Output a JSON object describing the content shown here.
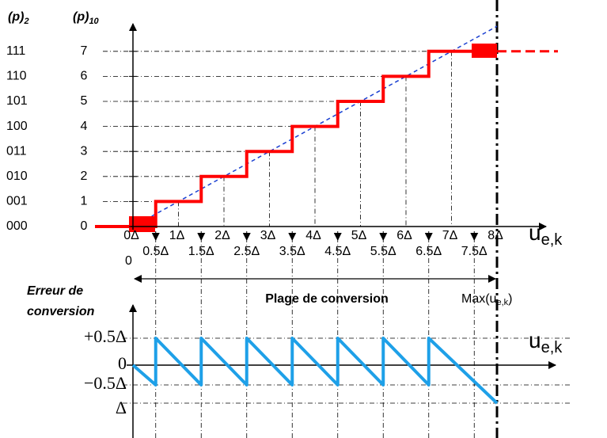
{
  "binary_axis_title": {
    "base": "(p)",
    "sub": "2"
  },
  "decimal_axis_title": {
    "base": "(p)",
    "sub": "10"
  },
  "binary_labels": [
    "111",
    "110",
    "101",
    "100",
    "011",
    "010",
    "001",
    "000"
  ],
  "decimal_labels": [
    "7",
    "6",
    "5",
    "4",
    "3",
    "2",
    "1",
    "0"
  ],
  "x_labels": [
    "0Δ",
    "1Δ",
    "2Δ",
    "3Δ",
    "4Δ",
    "5Δ",
    "6Δ",
    "7Δ",
    "8Δ"
  ],
  "x_half_labels": [
    "0.5Δ",
    "1.5Δ",
    "2.5Δ",
    "3.5Δ",
    "4.5Δ",
    "5.5Δ",
    "6.5Δ",
    "7.5Δ"
  ],
  "origin_label": "0",
  "x_axis_label": {
    "base": "u",
    "sub": "e,k"
  },
  "range_label": "Plage de conversion",
  "max_label": {
    "base": "Max(u",
    "sub": "e,k",
    "close": ")"
  },
  "error_title": [
    "Erreur de",
    "conversion"
  ],
  "error_labels": [
    "+0.5Δ",
    "0",
    "−0.5Δ",
    "Δ"
  ],
  "error_axis_label": {
    "base": "u",
    "sub": "e,k"
  }
}
